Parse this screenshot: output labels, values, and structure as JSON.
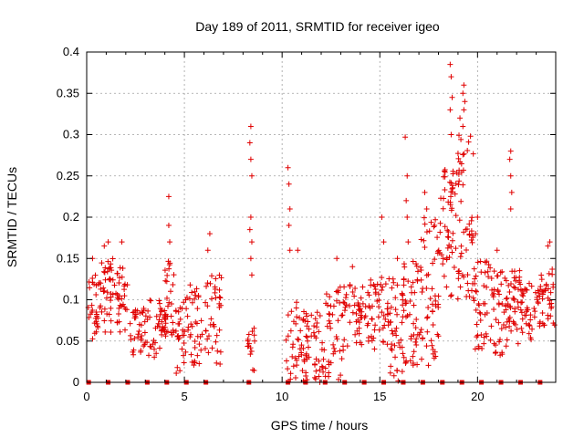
{
  "chart_data": {
    "type": "scatter",
    "title": "Day 189 of 2011, SRMTID for receiver igeo",
    "xlabel": "GPS time / hours",
    "ylabel": "SRMTID / TECUs",
    "xlim": [
      0,
      24
    ],
    "ylim": [
      0,
      0.4
    ],
    "x_ticks": [
      "0",
      "5",
      "10",
      "15",
      "20"
    ],
    "y_ticks": [
      "0",
      "0.05",
      "0.1",
      "0.15",
      "0.2",
      "0.25",
      "0.3",
      "0.35",
      "0.4"
    ],
    "grid": true,
    "marker": "+",
    "color": "#e00000",
    "series": [
      {
        "name": "SRMTID",
        "clusters": [
          {
            "x0": 0.0,
            "x1": 0.7,
            "y0": 0.05,
            "y1": 0.13,
            "n": 30,
            "peaks": [
              [
                0.3,
                0.15
              ]
            ]
          },
          {
            "x0": 0.7,
            "x1": 1.5,
            "y0": 0.06,
            "y1": 0.15,
            "n": 40,
            "peaks": [
              [
                1.1,
                0.17
              ],
              [
                0.9,
                0.165
              ]
            ]
          },
          {
            "x0": 1.5,
            "x1": 2.1,
            "y0": 0.06,
            "y1": 0.14,
            "n": 30,
            "peaks": [
              [
                1.8,
                0.17
              ]
            ]
          },
          {
            "x0": 2.2,
            "x1": 3.2,
            "y0": 0.03,
            "y1": 0.09,
            "n": 40,
            "peaks": []
          },
          {
            "x0": 3.2,
            "x1": 4.0,
            "y0": 0.03,
            "y1": 0.1,
            "n": 35,
            "peaks": []
          },
          {
            "x0": 4.0,
            "x1": 4.5,
            "y0": 0.05,
            "y1": 0.15,
            "n": 30,
            "peaks": [
              [
                4.2,
                0.225
              ],
              [
                4.2,
                0.19
              ],
              [
                4.25,
                0.17
              ]
            ]
          },
          {
            "x0": 4.5,
            "x1": 5.0,
            "y0": 0.01,
            "y1": 0.1,
            "n": 25,
            "peaks": []
          },
          {
            "x0": 5.0,
            "x1": 5.9,
            "y0": 0.02,
            "y1": 0.12,
            "n": 40,
            "peaks": []
          },
          {
            "x0": 5.9,
            "x1": 6.9,
            "y0": 0.02,
            "y1": 0.13,
            "n": 40,
            "peaks": [
              [
                6.3,
                0.18
              ],
              [
                6.2,
                0.16
              ]
            ]
          },
          {
            "x0": 8.2,
            "x1": 8.6,
            "y0": 0.01,
            "y1": 0.07,
            "n": 15,
            "peaks": [
              [
                8.4,
                0.31
              ],
              [
                8.35,
                0.29
              ],
              [
                8.4,
                0.27
              ],
              [
                8.45,
                0.25
              ],
              [
                8.4,
                0.2
              ],
              [
                8.35,
                0.185
              ],
              [
                8.45,
                0.17
              ],
              [
                8.4,
                0.15
              ],
              [
                8.45,
                0.13
              ]
            ]
          },
          {
            "x0": 10.2,
            "x1": 11.2,
            "y0": 0.0,
            "y1": 0.1,
            "n": 40,
            "peaks": [
              [
                10.3,
                0.26
              ],
              [
                10.35,
                0.24
              ],
              [
                10.4,
                0.21
              ],
              [
                10.35,
                0.19
              ],
              [
                10.4,
                0.16
              ],
              [
                10.8,
                0.16
              ]
            ]
          },
          {
            "x0": 11.2,
            "x1": 12.2,
            "y0": 0.0,
            "y1": 0.09,
            "n": 45,
            "peaks": []
          },
          {
            "x0": 12.2,
            "x1": 13.2,
            "y0": 0.0,
            "y1": 0.12,
            "n": 45,
            "peaks": [
              [
                12.8,
                0.15
              ]
            ]
          },
          {
            "x0": 13.2,
            "x1": 14.5,
            "y0": 0.04,
            "y1": 0.12,
            "n": 50,
            "peaks": [
              [
                13.6,
                0.14
              ]
            ]
          },
          {
            "x0": 14.5,
            "x1": 15.5,
            "y0": 0.04,
            "y1": 0.13,
            "n": 45,
            "peaks": [
              [
                15.1,
                0.2
              ],
              [
                15.2,
                0.17
              ]
            ]
          },
          {
            "x0": 15.5,
            "x1": 16.2,
            "y0": 0.0,
            "y1": 0.13,
            "n": 40,
            "peaks": [
              [
                15.9,
                0.15
              ]
            ]
          },
          {
            "x0": 16.2,
            "x1": 17.0,
            "y0": 0.02,
            "y1": 0.15,
            "n": 45,
            "peaks": [
              [
                16.3,
                0.297
              ],
              [
                16.4,
                0.25
              ],
              [
                16.35,
                0.22
              ],
              [
                16.4,
                0.2
              ],
              [
                16.45,
                0.17
              ]
            ]
          },
          {
            "x0": 17.0,
            "x1": 18.0,
            "y0": 0.02,
            "y1": 0.2,
            "n": 55,
            "peaks": [
              [
                17.3,
                0.23
              ],
              [
                17.4,
                0.21
              ],
              [
                17.8,
                0.19
              ]
            ]
          },
          {
            "x0": 18.0,
            "x1": 18.9,
            "y0": 0.1,
            "y1": 0.27,
            "n": 55,
            "peaks": [
              [
                18.6,
                0.385
              ],
              [
                18.65,
                0.37
              ],
              [
                18.7,
                0.345
              ],
              [
                18.6,
                0.33
              ],
              [
                18.65,
                0.3
              ]
            ]
          },
          {
            "x0": 18.9,
            "x1": 19.8,
            "y0": 0.1,
            "y1": 0.3,
            "n": 55,
            "peaks": [
              [
                19.3,
                0.36
              ],
              [
                19.25,
                0.35
              ],
              [
                19.35,
                0.34
              ],
              [
                19.3,
                0.33
              ],
              [
                19.1,
                0.32
              ],
              [
                19.25,
                0.31
              ]
            ]
          },
          {
            "x0": 19.8,
            "x1": 20.6,
            "y0": 0.04,
            "y1": 0.15,
            "n": 40,
            "peaks": [
              [
                20.0,
                0.2
              ],
              [
                19.9,
                0.18
              ]
            ]
          },
          {
            "x0": 20.6,
            "x1": 21.5,
            "y0": 0.03,
            "y1": 0.14,
            "n": 45,
            "peaks": [
              [
                21.0,
                0.16
              ]
            ]
          },
          {
            "x0": 21.5,
            "x1": 22.2,
            "y0": 0.04,
            "y1": 0.14,
            "n": 40,
            "peaks": [
              [
                21.7,
                0.28
              ],
              [
                21.65,
                0.27
              ],
              [
                21.7,
                0.25
              ],
              [
                21.75,
                0.23
              ],
              [
                21.7,
                0.21
              ]
            ]
          },
          {
            "x0": 22.2,
            "x1": 23.2,
            "y0": 0.05,
            "y1": 0.12,
            "n": 45,
            "peaks": []
          },
          {
            "x0": 23.2,
            "x1": 23.95,
            "y0": 0.06,
            "y1": 0.14,
            "n": 35,
            "peaks": [
              [
                23.6,
                0.165
              ],
              [
                23.7,
                0.17
              ]
            ]
          }
        ],
        "baseline_x": [
          0.1,
          1.1,
          2.1,
          3.1,
          4.1,
          5.1,
          6.1,
          8.3,
          10.3,
          11.2,
          12.2,
          13.2,
          14.2,
          15.2,
          16.2,
          17.2,
          18.2,
          19.2,
          20.2,
          21.2,
          22.2,
          23.2
        ],
        "baseline_y": 0
      }
    ]
  }
}
